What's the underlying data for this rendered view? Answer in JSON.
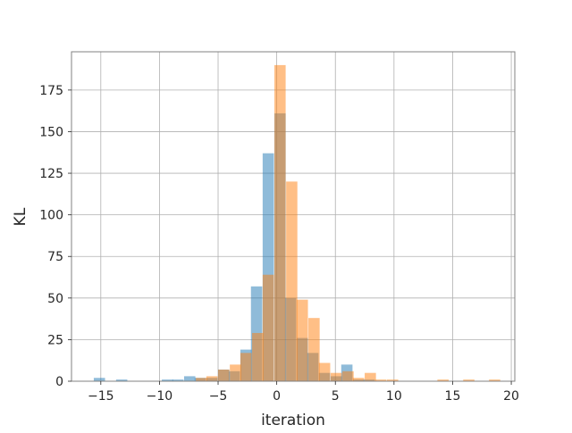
{
  "chart_data": {
    "type": "histogram",
    "xlabel": "iteration",
    "ylabel": "KL",
    "xlim": [
      -17.5,
      20.3
    ],
    "ylim": [
      0,
      198
    ],
    "xticks": [
      -15,
      -10,
      -5,
      0,
      5,
      10,
      15,
      20
    ],
    "yticks": [
      0,
      25,
      50,
      75,
      100,
      125,
      150,
      175
    ],
    "xtick_labels": [
      "−15",
      "−10",
      "−5",
      "0",
      "5",
      "10",
      "15",
      "20"
    ],
    "ytick_labels": [
      "0",
      "25",
      "50",
      "75",
      "100",
      "125",
      "150",
      "175"
    ],
    "grid": true,
    "series": [
      {
        "color": "#1f77b4",
        "opacity": 0.5,
        "bin_width": 0.96,
        "bins": [
          {
            "x": -15.6,
            "count": 2
          },
          {
            "x": -13.7,
            "count": 1
          },
          {
            "x": -9.8,
            "count": 1
          },
          {
            "x": -8.9,
            "count": 1
          },
          {
            "x": -7.9,
            "count": 3
          },
          {
            "x": -7.0,
            "count": 2
          },
          {
            "x": -6.0,
            "count": 2
          },
          {
            "x": -5.0,
            "count": 7
          },
          {
            "x": -4.1,
            "count": 6
          },
          {
            "x": -3.1,
            "count": 19
          },
          {
            "x": -2.2,
            "count": 57
          },
          {
            "x": -1.2,
            "count": 137
          },
          {
            "x": -0.2,
            "count": 161
          },
          {
            "x": 0.7,
            "count": 50
          },
          {
            "x": 1.7,
            "count": 26
          },
          {
            "x": 2.6,
            "count": 17
          },
          {
            "x": 3.6,
            "count": 5
          },
          {
            "x": 4.6,
            "count": 3
          },
          {
            "x": 5.5,
            "count": 10
          },
          {
            "x": 6.5,
            "count": 1
          },
          {
            "x": 7.4,
            "count": 1
          }
        ]
      },
      {
        "color": "#ff7f0e",
        "opacity": 0.5,
        "bin_width": 0.96,
        "bins": [
          {
            "x": -6.9,
            "count": 2
          },
          {
            "x": -6.0,
            "count": 3
          },
          {
            "x": -5.0,
            "count": 7
          },
          {
            "x": -4.0,
            "count": 10
          },
          {
            "x": -3.1,
            "count": 17
          },
          {
            "x": -2.1,
            "count": 29
          },
          {
            "x": -1.2,
            "count": 64
          },
          {
            "x": -0.2,
            "count": 190
          },
          {
            "x": 0.8,
            "count": 120
          },
          {
            "x": 1.7,
            "count": 49
          },
          {
            "x": 2.7,
            "count": 38
          },
          {
            "x": 3.6,
            "count": 11
          },
          {
            "x": 4.6,
            "count": 5
          },
          {
            "x": 5.6,
            "count": 6
          },
          {
            "x": 6.5,
            "count": 2
          },
          {
            "x": 7.5,
            "count": 5
          },
          {
            "x": 8.4,
            "count": 1
          },
          {
            "x": 9.4,
            "count": 1
          },
          {
            "x": 13.7,
            "count": 1
          },
          {
            "x": 15.9,
            "count": 1
          },
          {
            "x": 18.1,
            "count": 1
          }
        ]
      }
    ]
  }
}
